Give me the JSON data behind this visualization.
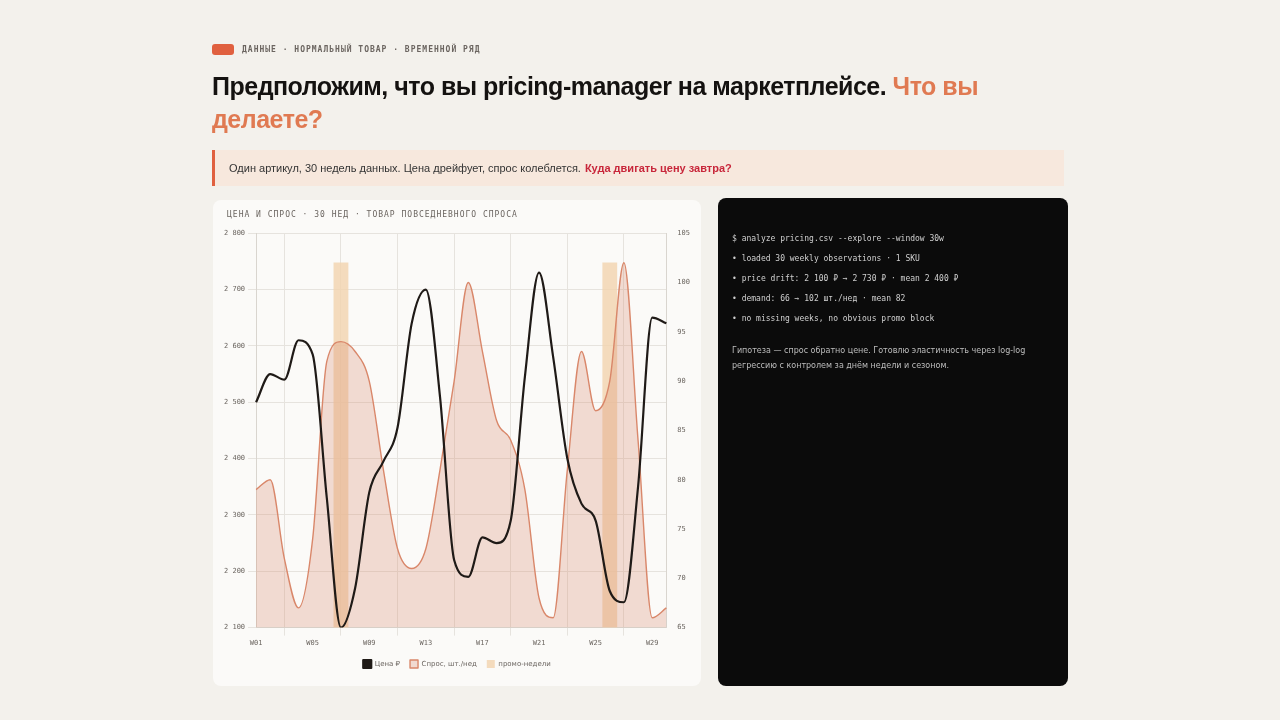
{
  "chart_data": [
    {
      "type": "line",
      "title": "ЦЕНА И СПРОС · 30 НЕД · ТОВАР ПОВСЕДНЕВНОГО СПРОСА",
      "annotations": [
        "ДАННЫЕ · НОРМАЛЬНЫЙ ТОВАР · ВРЕМЕННОЙ РЯД",
        "Предположим, что вы pricing-manager на маркетплейсе.",
        "Что вы делаете?",
        "Один артикул, 30 недель данных. Цена дрейфует, спрос колеблется.",
        "Куда двигать цену завтра?"
      ],
      "categories": [
        "W01",
        null,
        null,
        null,
        "W05",
        null,
        null,
        null,
        "W09",
        null,
        null,
        null,
        "W13",
        null,
        null,
        null,
        "W17",
        null,
        null,
        null,
        "W21",
        null,
        null,
        null,
        "W25",
        null,
        null,
        null,
        "W29",
        null
      ],
      "series": [
        {
          "name": "Цена ₽",
          "type": "line",
          "color": "#1f1a17",
          "values": [
            2500,
            2550,
            2540,
            2610,
            2585,
            2330,
            2100,
            2170,
            2340,
            2395,
            2455,
            2640,
            2700,
            2510,
            2220,
            2190,
            2260,
            2250,
            2290,
            2545,
            2730,
            2580,
            2400,
            2320,
            2290,
            2165,
            2145,
            2350,
            2650,
            2640
          ]
        },
        {
          "name": "Спрос, шт./нед",
          "type": "area",
          "axis": "y2",
          "color": "#d9876a",
          "values": [
            79,
            80,
            72,
            67,
            74,
            92,
            94,
            93,
            90,
            81,
            73,
            71,
            73,
            81,
            90,
            100,
            93,
            86,
            84,
            79,
            68,
            66,
            81,
            93,
            87,
            90,
            102,
            84,
            66,
            67
          ]
        },
        {
          "name": "промо-недели",
          "type": "bar",
          "axis": "y2",
          "color": "#f3d3ae",
          "values": [
            null,
            null,
            null,
            null,
            null,
            null,
            102,
            null,
            null,
            null,
            null,
            null,
            null,
            null,
            null,
            null,
            null,
            null,
            null,
            null,
            null,
            null,
            null,
            null,
            null,
            102,
            null,
            null,
            null,
            null
          ]
        }
      ],
      "ylim": [
        2100,
        2800
      ],
      "yticks": [
        {
          "value": 2100,
          "label": "2 100"
        },
        {
          "value": 2200,
          "label": "2 200"
        },
        {
          "value": 2300,
          "label": "2 300"
        },
        {
          "value": 2400,
          "label": "2 400"
        },
        {
          "value": 2500,
          "label": "2 500"
        },
        {
          "value": 2600,
          "label": "2 600"
        },
        {
          "value": 2700,
          "label": "2 700"
        },
        {
          "value": 2800,
          "label": "2 800"
        }
      ],
      "y2lim": [
        65,
        105
      ],
      "y2ticks": [
        65,
        70,
        75,
        80,
        85,
        90,
        95,
        100,
        105
      ],
      "grid": true,
      "legend": "bottom",
      "marker": "none"
    },
    {
      "type": "other",
      "annotations": [
        "$ analyze pricing.csv --explore --window 30w",
        "• loaded 30 weekly observations · 1 SKU",
        "• price drift: 2 100 ₽ → 2 730 ₽ · mean 2 400 ₽",
        "• demand: 66 → 102 шт./нед · mean 82",
        "• no missing weeks, no obvious promo block",
        "Гипотеза — спрос обратно цене. Готовлю эластичность через log-log регрессию с контролем за днём недели и сезоном."
      ]
    }
  ]
}
